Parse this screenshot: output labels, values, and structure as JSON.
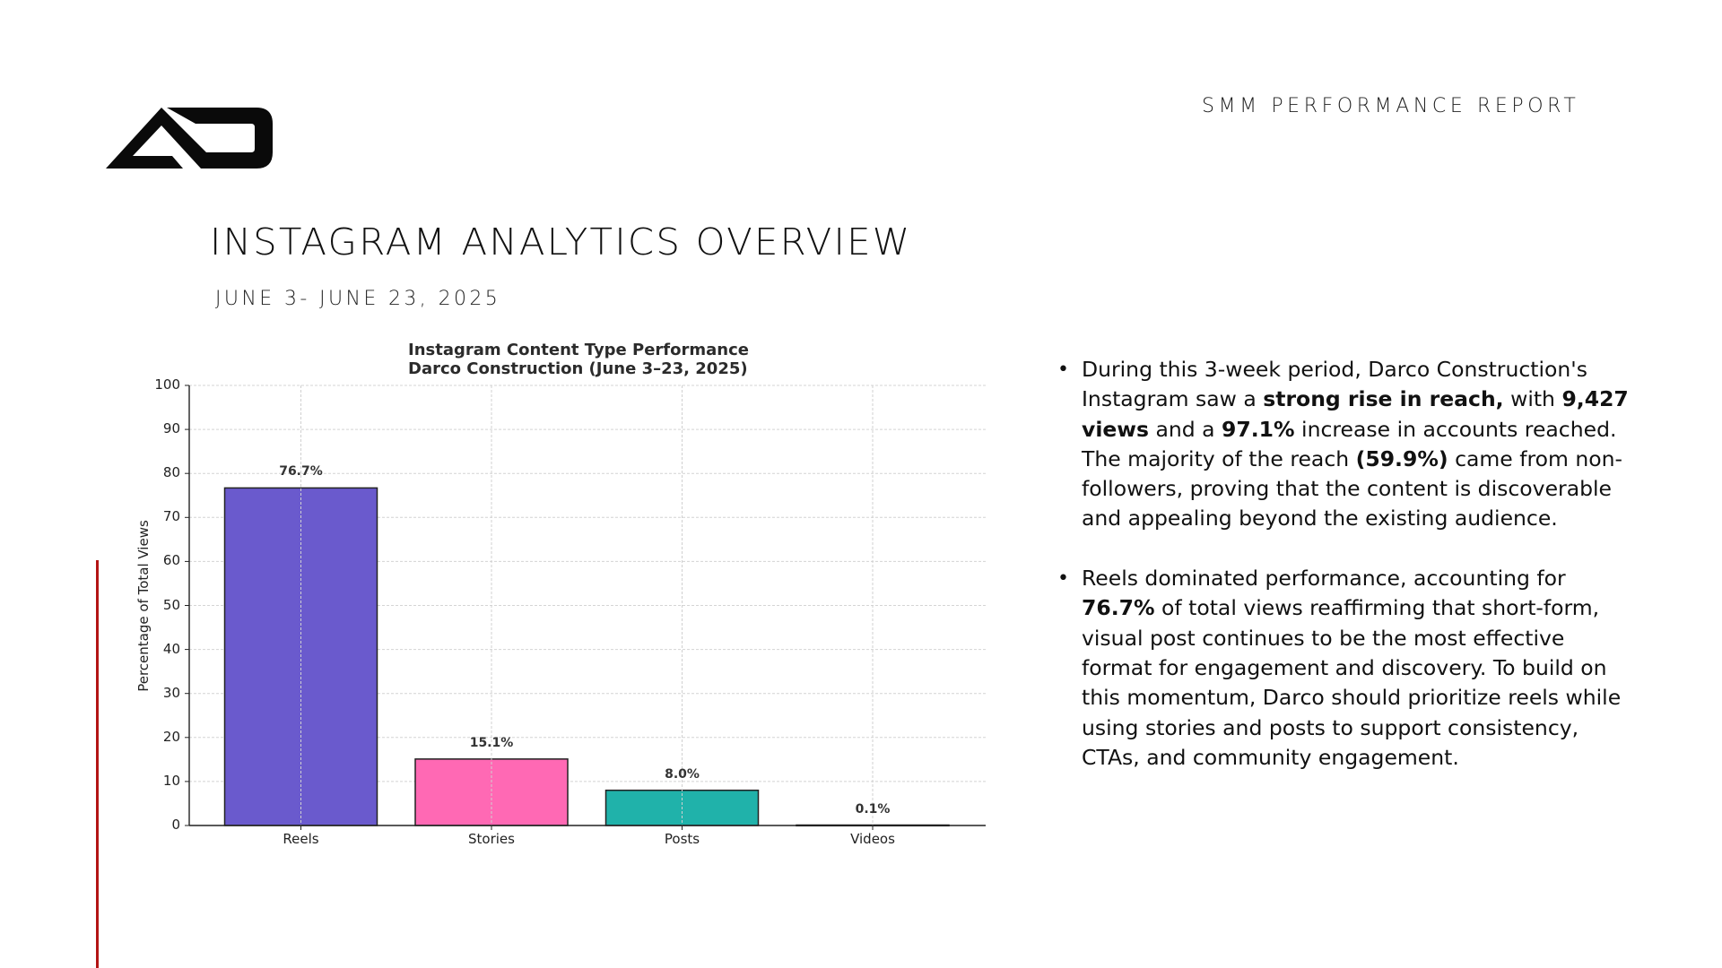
{
  "header": {
    "logo": "AO-logo",
    "report_label": "SMM PERFORMANCE REPORT"
  },
  "page": {
    "title": "INSTAGRAM ANALYTICS OVERVIEW",
    "date_range": "JUNE 3- JUNE 23, 2025"
  },
  "colors": {
    "accent_rule": "#b31414",
    "reels": "#6a5acd",
    "stories": "#ff69b4",
    "posts": "#20b2aa",
    "videos": "#808080"
  },
  "chart_data": {
    "type": "bar",
    "title": "Instagram Content Type Performance",
    "subtitle": "Darco Construction (June 3–23, 2025)",
    "xlabel": "",
    "ylabel": "Percentage of Total Views",
    "categories": [
      "Reels",
      "Stories",
      "Posts",
      "Videos"
    ],
    "values": [
      76.7,
      15.1,
      8.0,
      0.1
    ],
    "value_labels": [
      "76.7%",
      "15.1%",
      "8.0%",
      "0.1%"
    ],
    "colors": [
      "#6a5acd",
      "#ff69b4",
      "#20b2aa",
      "#808080"
    ],
    "ylim": [
      0,
      100
    ],
    "yticks": [
      0,
      10,
      20,
      30,
      40,
      50,
      60,
      70,
      80,
      90,
      100
    ],
    "grid": true,
    "legend": "none"
  },
  "insights": [
    {
      "segments": [
        {
          "text": "During this 3-week period, Darco Construction's Instagram saw a ",
          "bold": false
        },
        {
          "text": "strong rise in reach,",
          "bold": true
        },
        {
          "text": " with ",
          "bold": false
        },
        {
          "text": "9,427 views",
          "bold": true
        },
        {
          "text": " and a ",
          "bold": false
        },
        {
          "text": "97.1%",
          "bold": true
        },
        {
          "text": " increase in accounts reached. The majority of the reach ",
          "bold": false
        },
        {
          "text": "(59.9%)",
          "bold": true
        },
        {
          "text": " came from non-followers, proving that the content is discoverable and appealing beyond the existing audience.",
          "bold": false
        }
      ]
    },
    {
      "segments": [
        {
          "text": "Reels dominated performance, accounting for ",
          "bold": false
        },
        {
          "text": "76.7%",
          "bold": true
        },
        {
          "text": " of total views  reaffirming that short-form, visual post continues to be the most effective format for engagement and discovery. To build on this momentum, Darco should prioritize reels while using stories and posts to support consistency, CTAs, and community engagement.",
          "bold": false
        }
      ]
    }
  ]
}
